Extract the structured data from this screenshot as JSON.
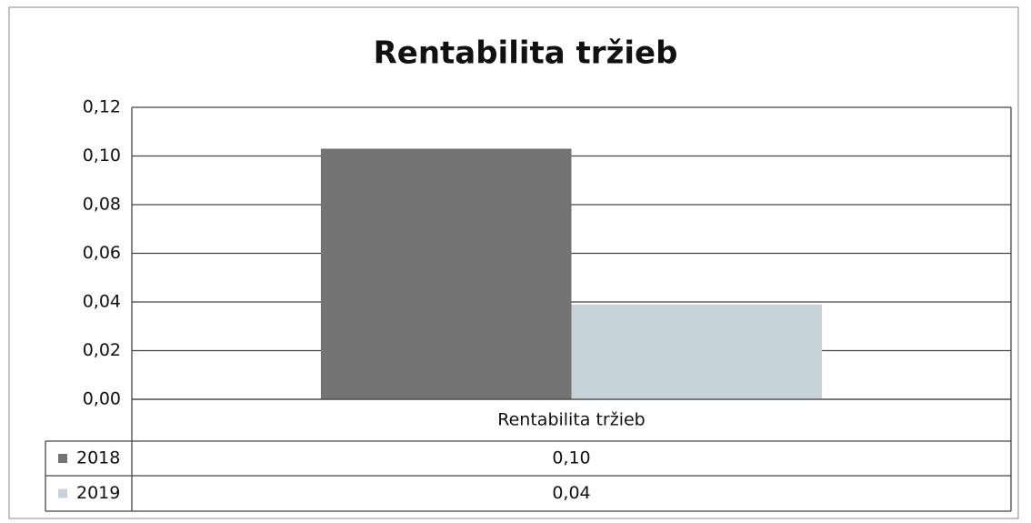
{
  "chart_data": {
    "type": "bar",
    "title": "Rentabilita tržieb",
    "categories": [
      "Rentabilita tržieb"
    ],
    "series": [
      {
        "name": "2018",
        "color": "#737373",
        "values": [
          0.103
        ],
        "value_labels": [
          "0,10"
        ]
      },
      {
        "name": "2019",
        "color": "#c6d4da",
        "values": [
          0.039
        ],
        "value_labels": [
          "0,04"
        ]
      }
    ],
    "ylim": [
      0,
      0.12
    ],
    "yticks": [
      {
        "value": 0,
        "label": "0,00"
      },
      {
        "value": 0.02,
        "label": "0,02"
      },
      {
        "value": 0.04,
        "label": "0,04"
      },
      {
        "value": 0.06,
        "label": "0,06"
      },
      {
        "value": 0.08,
        "label": "0,08"
      },
      {
        "value": 0.1,
        "label": "0,10"
      },
      {
        "value": 0.12,
        "label": "0,12"
      }
    ],
    "grid": true
  }
}
